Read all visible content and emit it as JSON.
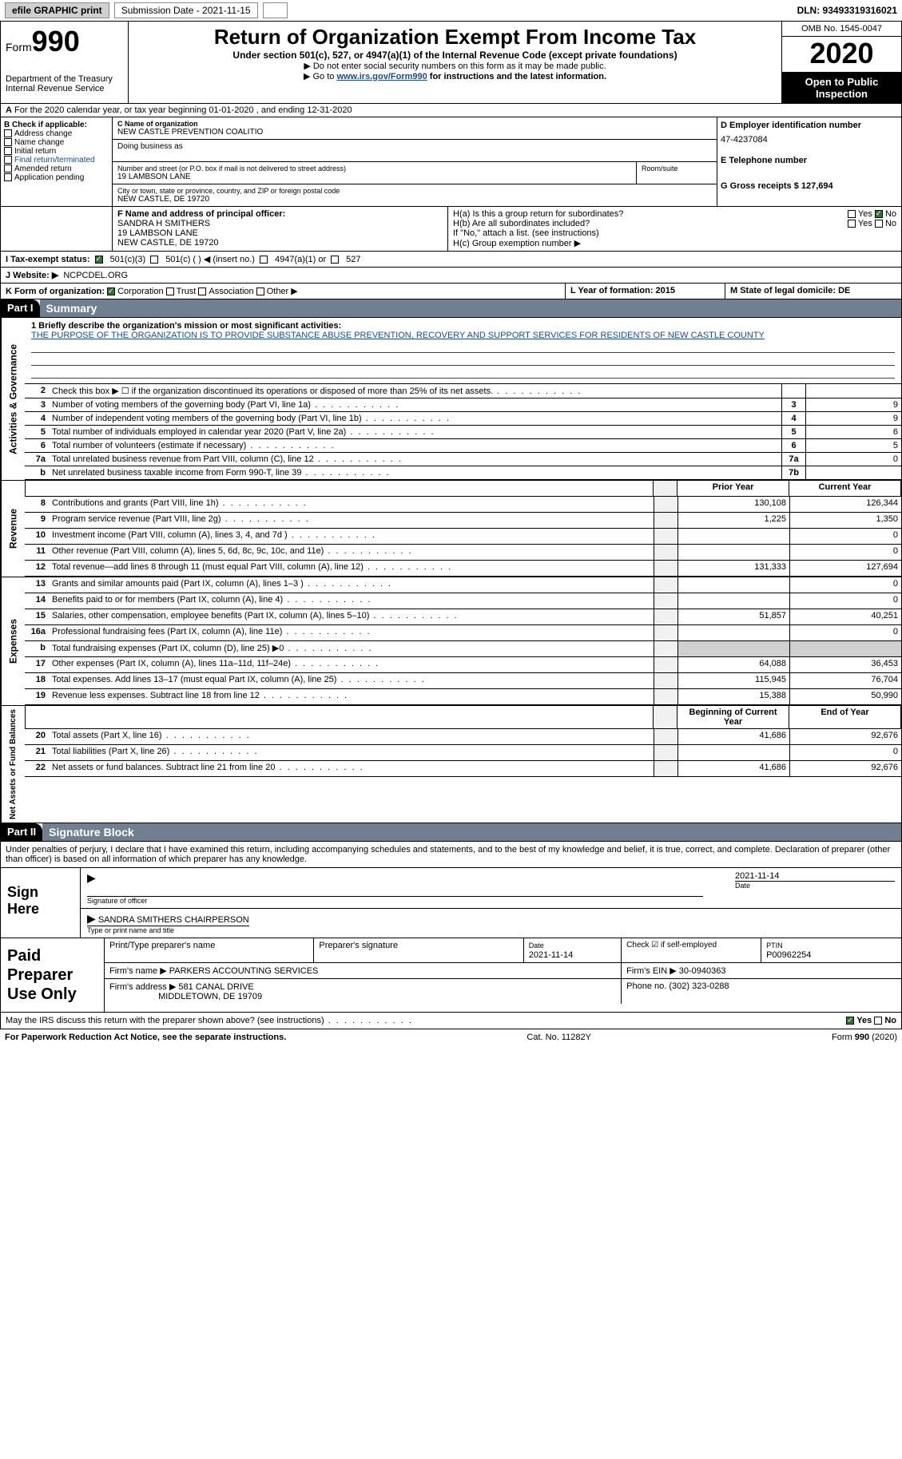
{
  "topbar": {
    "efile": "efile GRAPHIC print",
    "submission_label": "Submission Date - 2021-11-15",
    "dln_label": "DLN: 93493319316021"
  },
  "header": {
    "form_prefix": "Form",
    "form_number": "990",
    "dept": "Department of the Treasury",
    "irs": "Internal Revenue Service",
    "title": "Return of Organization Exempt From Income Tax",
    "subtitle": "Under section 501(c), 527, or 4947(a)(1) of the Internal Revenue Code (except private foundations)",
    "instr1": "▶ Do not enter social security numbers on this form as it may be made public.",
    "instr2_pre": "▶ Go to ",
    "instr2_link": "www.irs.gov/Form990",
    "instr2_post": " for instructions and the latest information.",
    "omb": "OMB No. 1545-0047",
    "year": "2020",
    "open": "Open to Public Inspection"
  },
  "row_a": "For the 2020 calendar year, or tax year beginning 01-01-2020   , and ending 12-31-2020",
  "section_b": {
    "label": "B Check if applicable:",
    "items": [
      "Address change",
      "Name change",
      "Initial return",
      "Final return/terminated",
      "Amended return",
      "Application pending"
    ]
  },
  "section_c": {
    "name_label": "C Name of organization",
    "name": "NEW CASTLE PREVENTION COALITIO",
    "dba_label": "Doing business as",
    "addr_label": "Number and street (or P.O. box if mail is not delivered to street address)",
    "addr": "19 LAMBSON LANE",
    "room_label": "Room/suite",
    "city_label": "City or town, state or province, country, and ZIP or foreign postal code",
    "city": "NEW CASTLE, DE  19720"
  },
  "section_d": {
    "ein_label": "D Employer identification number",
    "ein": "47-4237084",
    "phone_label": "E Telephone number",
    "gross_label": "G Gross receipts $ 127,694"
  },
  "section_f": {
    "label": "F  Name and address of principal officer:",
    "name": "SANDRA H SMITHERS",
    "addr1": "19 LAMBSON LANE",
    "addr2": "NEW CASTLE, DE  19720"
  },
  "section_h": {
    "ha": "H(a)  Is this a group return for subordinates?",
    "hb": "H(b)  Are all subordinates included?",
    "hb_note": "If \"No,\" attach a list. (see instructions)",
    "hc": "H(c)  Group exemption number ▶",
    "yes": "Yes",
    "no": "No"
  },
  "row_i": {
    "label": "I   Tax-exempt status:",
    "opt1": "501(c)(3)",
    "opt2": "501(c) (  ) ◀ (insert no.)",
    "opt3": "4947(a)(1) or",
    "opt4": "527"
  },
  "row_j": {
    "label": "J   Website: ▶",
    "value": "NCPCDEL.ORG"
  },
  "row_k": {
    "label": "K Form of organization:",
    "opts": [
      "Corporation",
      "Trust",
      "Association",
      "Other ▶"
    ],
    "l": "L Year of formation: 2015",
    "m": "M State of legal domicile: DE"
  },
  "part1": {
    "num": "Part I",
    "title": "Summary"
  },
  "mission": {
    "q": "1  Briefly describe the organization's mission or most significant activities:",
    "text": "THE PURPOSE OF THE ORGANIZATION IS TO PROVIDE SUBSTANCE ABUSE PREVENTION, RECOVERY AND SUPPORT SERVICES FOR RESIDENTS OF NEW CASTLE COUNTY"
  },
  "gov_lines": [
    {
      "n": "2",
      "t": "Check this box ▶ ☐  if the organization discontinued its operations or disposed of more than 25% of its net assets.",
      "b": "",
      "v": ""
    },
    {
      "n": "3",
      "t": "Number of voting members of the governing body (Part VI, line 1a)",
      "b": "3",
      "v": "9"
    },
    {
      "n": "4",
      "t": "Number of independent voting members of the governing body (Part VI, line 1b)",
      "b": "4",
      "v": "9"
    },
    {
      "n": "5",
      "t": "Total number of individuals employed in calendar year 2020 (Part V, line 2a)",
      "b": "5",
      "v": "6"
    },
    {
      "n": "6",
      "t": "Total number of volunteers (estimate if necessary)",
      "b": "6",
      "v": "5"
    },
    {
      "n": "7a",
      "t": "Total unrelated business revenue from Part VIII, column (C), line 12",
      "b": "7a",
      "v": "0"
    },
    {
      "n": "b",
      "t": "Net unrelated business taxable income from Form 990-T, line 39",
      "b": "7b",
      "v": ""
    }
  ],
  "col_hdr": {
    "prior": "Prior Year",
    "current": "Current Year"
  },
  "rev_lines": [
    {
      "n": "8",
      "t": "Contributions and grants (Part VIII, line 1h)",
      "p": "130,108",
      "c": "126,344"
    },
    {
      "n": "9",
      "t": "Program service revenue (Part VIII, line 2g)",
      "p": "1,225",
      "c": "1,350"
    },
    {
      "n": "10",
      "t": "Investment income (Part VIII, column (A), lines 3, 4, and 7d )",
      "p": "",
      "c": "0"
    },
    {
      "n": "11",
      "t": "Other revenue (Part VIII, column (A), lines 5, 6d, 8c, 9c, 10c, and 11e)",
      "p": "",
      "c": "0"
    },
    {
      "n": "12",
      "t": "Total revenue—add lines 8 through 11 (must equal Part VIII, column (A), line 12)",
      "p": "131,333",
      "c": "127,694"
    }
  ],
  "exp_lines": [
    {
      "n": "13",
      "t": "Grants and similar amounts paid (Part IX, column (A), lines 1–3 )",
      "p": "",
      "c": "0"
    },
    {
      "n": "14",
      "t": "Benefits paid to or for members (Part IX, column (A), line 4)",
      "p": "",
      "c": "0"
    },
    {
      "n": "15",
      "t": "Salaries, other compensation, employee benefits (Part IX, column (A), lines 5–10)",
      "p": "51,857",
      "c": "40,251"
    },
    {
      "n": "16a",
      "t": "Professional fundraising fees (Part IX, column (A), line 11e)",
      "p": "",
      "c": "0"
    },
    {
      "n": "b",
      "t": "Total fundraising expenses (Part IX, column (D), line 25) ▶0",
      "p": "GRAY",
      "c": "GRAY"
    },
    {
      "n": "17",
      "t": "Other expenses (Part IX, column (A), lines 11a–11d, 11f–24e)",
      "p": "64,088",
      "c": "36,453"
    },
    {
      "n": "18",
      "t": "Total expenses. Add lines 13–17 (must equal Part IX, column (A), line 25)",
      "p": "115,945",
      "c": "76,704"
    },
    {
      "n": "19",
      "t": "Revenue less expenses. Subtract line 18 from line 12",
      "p": "15,388",
      "c": "50,990"
    }
  ],
  "net_hdr": {
    "prior": "Beginning of Current Year",
    "current": "End of Year"
  },
  "net_lines": [
    {
      "n": "20",
      "t": "Total assets (Part X, line 16)",
      "p": "41,686",
      "c": "92,676"
    },
    {
      "n": "21",
      "t": "Total liabilities (Part X, line 26)",
      "p": "",
      "c": "0"
    },
    {
      "n": "22",
      "t": "Net assets or fund balances. Subtract line 21 from line 20",
      "p": "41,686",
      "c": "92,676"
    }
  ],
  "part2": {
    "num": "Part II",
    "title": "Signature Block"
  },
  "penalty": "Under penalties of perjury, I declare that I have examined this return, including accompanying schedules and statements, and to the best of my knowledge and belief, it is true, correct, and complete. Declaration of preparer (other than officer) is based on all information of which preparer has any knowledge.",
  "sign": {
    "here": "Sign Here",
    "sig_label": "Signature of officer",
    "date_label": "Date",
    "date": "2021-11-14",
    "name": "SANDRA SMITHERS CHAIRPERSON",
    "name_label": "Type or print name and title"
  },
  "prep": {
    "title": "Paid Preparer Use Only",
    "h1": "Print/Type preparer's name",
    "h2": "Preparer's signature",
    "h3": "Date",
    "h3v": "2021-11-14",
    "h4": "Check ☑ if self-employed",
    "h5": "PTIN",
    "h5v": "P00962254",
    "firm_label": "Firm's name    ▶",
    "firm": "PARKERS ACCOUNTING SERVICES",
    "ein_label": "Firm's EIN ▶",
    "ein": "30-0940363",
    "addr_label": "Firm's address ▶",
    "addr1": "581 CANAL DRIVE",
    "addr2": "MIDDLETOWN, DE  19709",
    "phone_label": "Phone no.",
    "phone": "(302) 323-0288"
  },
  "discuss": "May the IRS discuss this return with the preparer shown above? (see instructions)",
  "footer": {
    "pra": "For Paperwork Reduction Act Notice, see the separate instructions.",
    "cat": "Cat. No. 11282Y",
    "form": "Form 990 (2020)"
  },
  "vlabels": {
    "gov": "Activities & Governance",
    "rev": "Revenue",
    "exp": "Expenses",
    "net": "Net Assets or Fund Balances"
  }
}
